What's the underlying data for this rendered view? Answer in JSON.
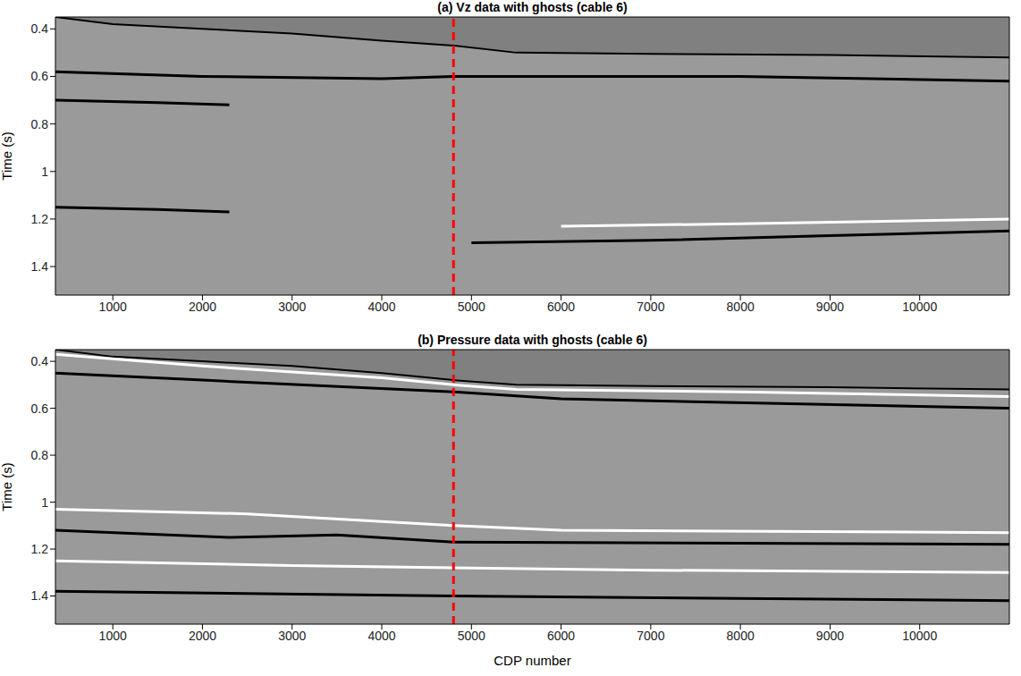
{
  "chart_data": [
    {
      "type": "line",
      "title": "(a) Vz data with ghosts (cable 6)",
      "y_label": "Time (s)",
      "xlim": [
        360,
        11000
      ],
      "xticks": [
        1000,
        2000,
        3000,
        4000,
        5000,
        6000,
        7000,
        8000,
        9000,
        10000
      ],
      "ylim": [
        0.35,
        1.52
      ],
      "yticks": [
        0.4,
        0.6,
        0.8,
        1,
        1.2,
        1.4
      ],
      "reference_line": {
        "x": 4800,
        "color": "#ff0000",
        "line_style": "dashed"
      },
      "series": [
        {
          "type": "area",
          "color": "#808080",
          "x": [
            360,
            1000,
            2000,
            3000,
            4000,
            4800,
            5500,
            7000,
            9000,
            11000
          ],
          "values": [
            0.35,
            0.38,
            0.4,
            0.42,
            0.45,
            0.47,
            0.5,
            0.505,
            0.51,
            0.52
          ]
        },
        {
          "type": "line",
          "color": "#000000",
          "x": [
            360,
            2000,
            4000,
            4800,
            6000,
            8000,
            11000
          ],
          "values": [
            0.58,
            0.6,
            0.61,
            0.6,
            0.6,
            0.6,
            0.62
          ]
        },
        {
          "type": "line",
          "color": "#000000",
          "x": [
            360,
            1500,
            2300
          ],
          "values": [
            0.7,
            0.71,
            0.72
          ]
        },
        {
          "type": "line",
          "color": "#000000",
          "x": [
            360,
            1500,
            2300
          ],
          "values": [
            1.15,
            1.16,
            1.17
          ]
        },
        {
          "type": "line",
          "color": "#ffffff",
          "x": [
            6000,
            8000,
            11000
          ],
          "values": [
            1.23,
            1.22,
            1.2
          ]
        },
        {
          "type": "line",
          "color": "#000000",
          "x": [
            5000,
            7000,
            9000,
            11000
          ],
          "values": [
            1.3,
            1.29,
            1.27,
            1.25
          ]
        }
      ]
    },
    {
      "type": "line",
      "title": "(b) Pressure data with ghosts (cable 6)",
      "y_label": "Time (s)",
      "x_label": "CDP number",
      "xlim": [
        360,
        11000
      ],
      "xticks": [
        1000,
        2000,
        3000,
        4000,
        5000,
        6000,
        7000,
        8000,
        9000,
        10000
      ],
      "ylim": [
        0.35,
        1.52
      ],
      "yticks": [
        0.4,
        0.6,
        0.8,
        1,
        1.2,
        1.4
      ],
      "reference_line": {
        "x": 4800,
        "color": "#ff0000",
        "line_style": "dashed"
      },
      "series": [
        {
          "type": "area",
          "color": "#808080",
          "x": [
            360,
            1000,
            2000,
            3000,
            4000,
            4800,
            5500,
            7000,
            9000,
            11000
          ],
          "values": [
            0.35,
            0.38,
            0.4,
            0.42,
            0.45,
            0.48,
            0.5,
            0.505,
            0.51,
            0.52
          ]
        },
        {
          "type": "line",
          "color": "#ffffff",
          "x": [
            360,
            2000,
            4000,
            4800,
            5500,
            8000,
            11000
          ],
          "values": [
            0.37,
            0.42,
            0.47,
            0.5,
            0.52,
            0.53,
            0.55
          ]
        },
        {
          "type": "line",
          "color": "#000000",
          "x": [
            360,
            2000,
            4800,
            6000,
            11000
          ],
          "values": [
            0.45,
            0.48,
            0.53,
            0.56,
            0.6
          ]
        },
        {
          "type": "line",
          "color": "#ffffff",
          "x": [
            360,
            2500,
            4800,
            6000,
            11000
          ],
          "values": [
            1.03,
            1.05,
            1.1,
            1.12,
            1.13
          ]
        },
        {
          "type": "line",
          "color": "#000000",
          "x": [
            360,
            2300,
            3500,
            4800,
            11000
          ],
          "values": [
            1.12,
            1.15,
            1.14,
            1.17,
            1.18
          ]
        },
        {
          "type": "line",
          "color": "#ffffff",
          "x": [
            360,
            3000,
            4800,
            7000,
            11000
          ],
          "values": [
            1.25,
            1.27,
            1.28,
            1.29,
            1.3
          ]
        },
        {
          "type": "line",
          "color": "#000000",
          "x": [
            360,
            4800,
            11000
          ],
          "values": [
            1.38,
            1.4,
            1.42
          ]
        }
      ]
    }
  ]
}
